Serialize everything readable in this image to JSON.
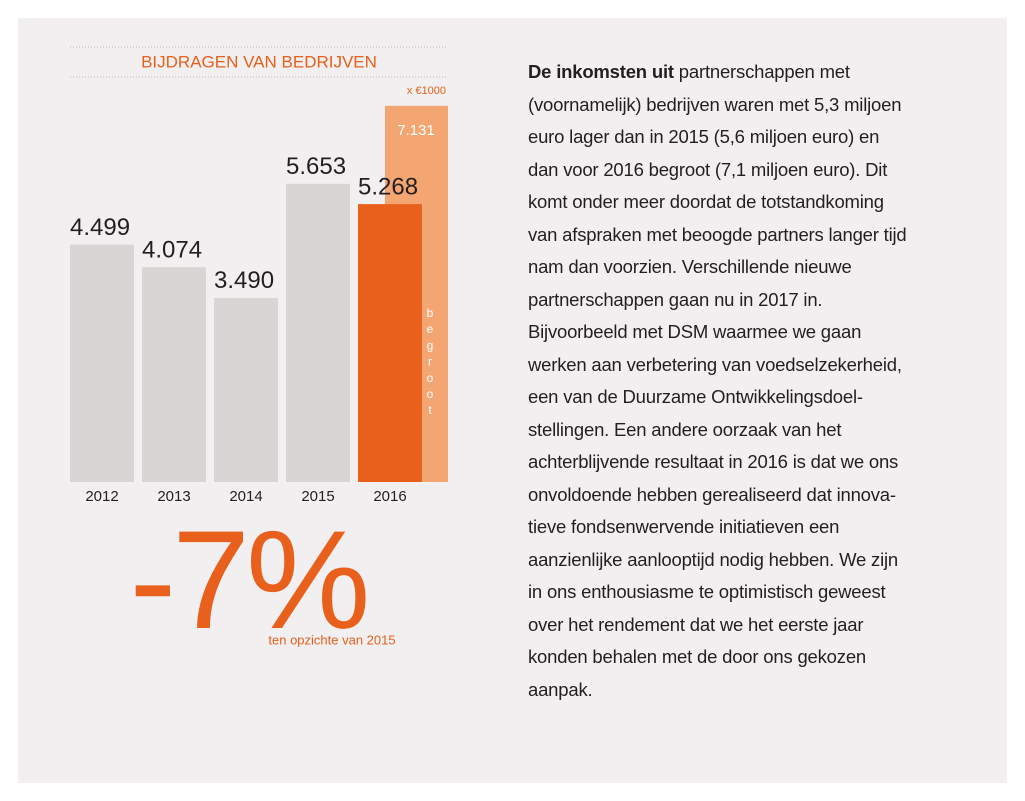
{
  "chart_data": {
    "type": "bar",
    "title": "BIJDRAGEN VAN BEDRIJVEN",
    "unit_label": "x €1000",
    "categories": [
      "2012",
      "2013",
      "2014",
      "2015",
      "2016"
    ],
    "values": [
      4499,
      4074,
      3490,
      5653,
      5268
    ],
    "value_labels": [
      "4.499",
      "4.074",
      "3.490",
      "5.653",
      "5.268"
    ],
    "colors": [
      "#d9d5d4",
      "#d9d5d4",
      "#d9d5d4",
      "#d9d5d4",
      "#e8601c"
    ],
    "budget": {
      "label": "begroot",
      "values": [
        null,
        null,
        null,
        null,
        7131
      ],
      "value_labels": [
        null,
        null,
        null,
        null,
        "7.131"
      ],
      "color": "#f4a672"
    },
    "ylim": [
      0,
      8000
    ]
  },
  "change": {
    "value": -7,
    "label": "-7%",
    "caption": "ten opzichte van 2015",
    "color": "#e8601c"
  },
  "article": {
    "lead": "De inkomsten uit",
    "lines": [
      " partnerschappen met",
      "(voornamelijk) bedrijven waren met 5,3 miljoen",
      "euro lager dan in 2015 (5,6 miljoen euro) en",
      "dan voor 2016 begroot (7,1 miljoen euro). Dit",
      "komt onder meer doordat de totstandkoming",
      "van afspraken met beoogde partners langer tijd",
      "nam dan voorzien. Verschillende nieuwe",
      "partnerschappen gaan nu in 2017 in.",
      "Bijvoorbeeld met DSM waarmee we gaan",
      "werken aan verbetering van voedselzekerheid,",
      "een van de Duurzame Ontwikkelingsdoel-",
      "stellingen. Een andere oorzaak van het",
      "achterblijvende resultaat in 2016 is dat we ons",
      "onvoldoende hebben gerealiseerd dat innova-",
      "tieve fondsenwervende initiatieven een",
      "aanzienlijke aanlooptijd nodig hebben. We zijn",
      "in ons enthousiasme te optimistisch geweest",
      "over het rendement dat we het eerste jaar",
      "konden behalen met de door ons gekozen",
      "aanpak."
    ]
  }
}
